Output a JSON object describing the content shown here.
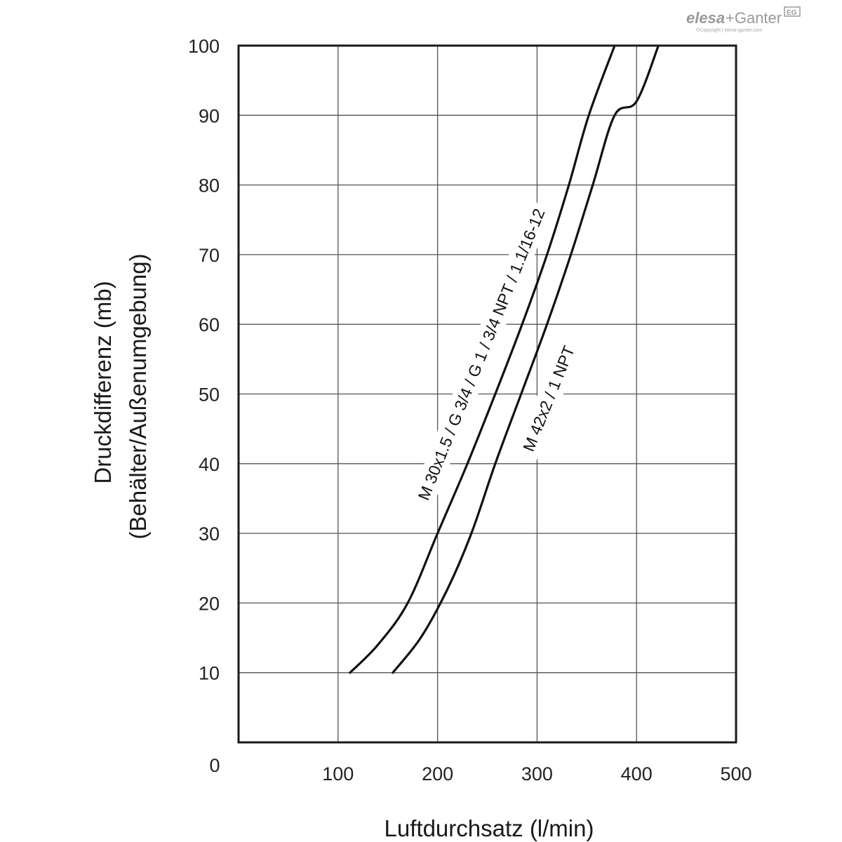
{
  "brand": {
    "name": "elesa+Ganter",
    "badge": "EG",
    "copyright": "©Copyright | elesa-ganter.com"
  },
  "chart_data": {
    "type": "line",
    "xlabel": "Luftdurchsatz (l/min)",
    "ylabel": "Druckdifferenz (mb)",
    "ylabel2": "(Behälter/Außenumgebung)",
    "origin_label": "0",
    "xlim": [
      0,
      500
    ],
    "ylim": [
      0,
      100
    ],
    "x_ticks": [
      100,
      200,
      300,
      400,
      500
    ],
    "y_ticks": [
      10,
      20,
      30,
      40,
      50,
      60,
      70,
      80,
      90,
      100
    ],
    "grid": true,
    "series": [
      {
        "name": "M 30x1.5 / G 3/4 / G 1 / 3/4 NPT / 1.1/16-12",
        "x": [
          112,
          140,
          170,
          200,
          230,
          258,
          285,
          310,
          332,
          352,
          378
        ],
        "y": [
          10,
          14,
          20,
          30,
          40,
          50,
          60,
          70,
          80,
          90,
          100
        ]
      },
      {
        "name": "M 42x2 / 1 NPT",
        "x": [
          155,
          183,
          210,
          234,
          258,
          284,
          310,
          334,
          356,
          378,
          400,
          422
        ],
        "y": [
          10,
          15,
          22,
          30,
          40,
          50,
          60,
          70,
          80,
          90,
          92,
          100
        ]
      }
    ]
  }
}
